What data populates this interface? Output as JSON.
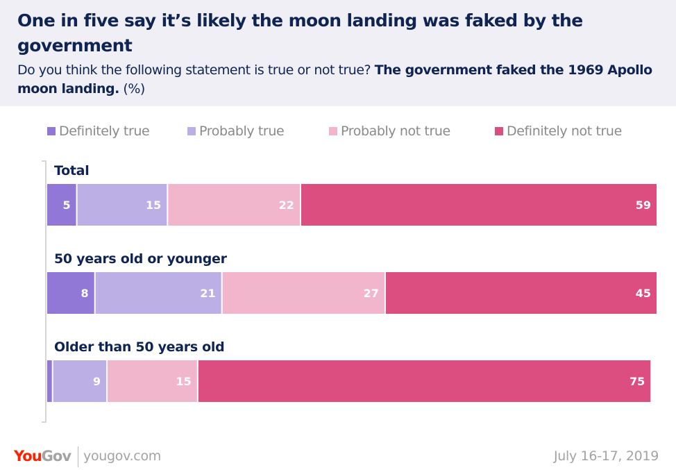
{
  "header": {
    "title": "One in five say it’s likely the moon landing was faked by the government",
    "subtitle_plain": "Do you think the following statement is true or not true?",
    "subtitle_bold": "The government faked the 1969 Apollo moon landing.",
    "subtitle_unit": "(%)"
  },
  "legend": [
    {
      "label": "Definitely true",
      "color": "#9178d6"
    },
    {
      "label": "Probably true",
      "color": "#bcafe5"
    },
    {
      "label": "Probably not true",
      "color": "#f1b6cb"
    },
    {
      "label": "Definitely not true",
      "color": "#dc4d80"
    }
  ],
  "chart_data": {
    "type": "bar",
    "orientation": "horizontal",
    "stacked": true,
    "title": "One in five say it’s likely the moon landing was faked by the government",
    "subtitle": "Do you think the following statement is true or not true? The government faked the 1969 Apollo moon landing. (%)",
    "xlabel": "",
    "ylabel": "",
    "unit": "%",
    "categories": [
      "Total",
      "50 years old or younger",
      "Older than 50 years old"
    ],
    "series": [
      {
        "name": "Definitely true",
        "color": "#9178d6",
        "values": [
          5,
          8,
          1
        ],
        "labels": [
          "5",
          "8",
          ""
        ]
      },
      {
        "name": "Probably true",
        "color": "#bcafe5",
        "values": [
          15,
          21,
          9
        ],
        "labels": [
          "15",
          "21",
          "9"
        ]
      },
      {
        "name": "Probably not true",
        "color": "#f1b6cb",
        "values": [
          22,
          27,
          15
        ],
        "labels": [
          "22",
          "27",
          "15"
        ]
      },
      {
        "name": "Definitely not true",
        "color": "#dc4d80",
        "values": [
          59,
          45,
          75
        ],
        "labels": [
          "59",
          "45",
          "75"
        ]
      }
    ],
    "xlim": [
      0,
      101
    ],
    "grid": false,
    "legend_position": "top"
  },
  "footer": {
    "logo_you": "You",
    "logo_gov": "Gov",
    "site": "yougov.com",
    "date": "July 16-17, 2019"
  }
}
